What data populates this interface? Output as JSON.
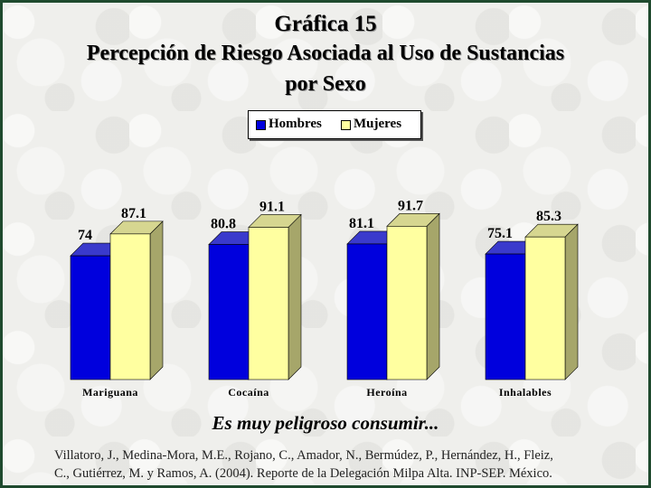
{
  "title_line1": "Gráfica 15",
  "title_line2": "Percepción de Riesgo Asociada al Uso de Sustancias",
  "title_line3": "por Sexo",
  "subtitle": "Es muy peligroso consumir...",
  "citation_line1": "Villatoro, J., Medina-Mora, M.E., Rojano, C., Amador, N., Bermúdez, P., Hernández, H., Fleiz,",
  "citation_line2": "C., Gutiérrez, M. y Ramos, A. (2004). Reporte de la Delegación Milpa Alta. INP-SEP. México.",
  "legend_placement": "top-center",
  "chart_data": {
    "type": "bar",
    "categories": [
      "Mariguana",
      "Cocaína",
      "Heroína",
      "Inhalables"
    ],
    "series": [
      {
        "name": "Hombres",
        "values": [
          74,
          80.8,
          81.1,
          75.1
        ],
        "color": "#0000dd"
      },
      {
        "name": "Mujeres",
        "values": [
          87.1,
          91.1,
          91.7,
          85.3
        ],
        "color": "#ffffa0"
      }
    ],
    "data_labels": true,
    "grid": false,
    "three_d": true
  }
}
